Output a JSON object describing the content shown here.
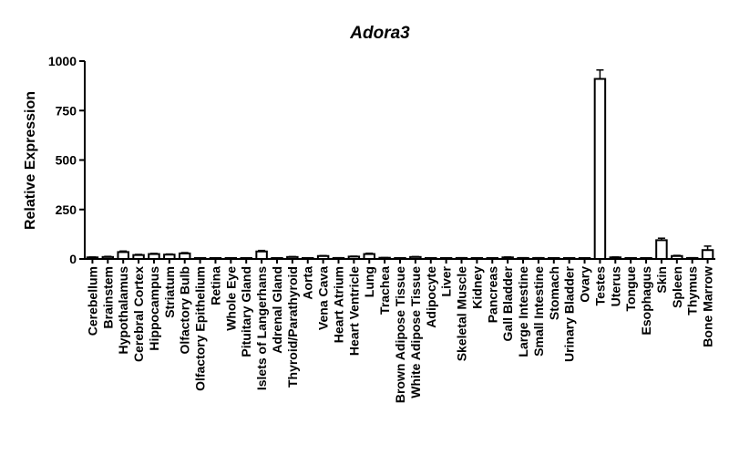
{
  "chart_data": {
    "type": "bar",
    "title": "Adora3",
    "xlabel": "",
    "ylabel": "Relative Expression",
    "ylim": [
      0,
      1000
    ],
    "yticks": [
      0,
      250,
      500,
      750,
      1000
    ],
    "grid": false,
    "legend": "none",
    "categories": [
      "Cerebellum",
      "Brainstem",
      "Hypothalamus",
      "Cerebral Cortex",
      "Hippocampus",
      "Striatum",
      "Olfactory Bulb",
      "Olfactory Epithelium",
      "Retina",
      "Whole Eye",
      "Pituitary Gland",
      "Islets of Langerhans",
      "Adrenal Gland",
      "Thyroid/Parathyroid",
      "Aorta",
      "Vena Cava",
      "Heart Atrium",
      "Heart Ventricle",
      "Lung",
      "Trachea",
      "Brown Adipose Tissue",
      "White Adipose Tissue",
      "Adipocyte",
      "Liver",
      "Skeletal Muscle",
      "Kidney",
      "Pancreas",
      "Gall Bladder",
      "Large Intestine",
      "Small Intestine",
      "Stomach",
      "Urinary Bladder",
      "Ovary",
      "Testes",
      "Uterus",
      "Tongue",
      "Esophagus",
      "Skin",
      "Spleen",
      "Thymus",
      "Bone Marrow"
    ],
    "values": [
      8,
      10,
      35,
      20,
      25,
      22,
      28,
      2,
      3,
      4,
      2,
      38,
      2,
      10,
      3,
      15,
      5,
      12,
      25,
      6,
      3,
      10,
      3,
      4,
      5,
      2,
      2,
      8,
      5,
      5,
      3,
      3,
      2,
      910,
      8,
      4,
      2,
      95,
      15,
      5,
      45
    ],
    "errors": [
      2,
      3,
      5,
      3,
      3,
      3,
      4,
      1,
      1,
      1,
      1,
      5,
      1,
      2,
      1,
      2,
      1,
      2,
      4,
      1,
      1,
      2,
      1,
      1,
      1,
      1,
      1,
      2,
      1,
      1,
      1,
      1,
      1,
      45,
      2,
      1,
      1,
      10,
      3,
      1,
      20
    ],
    "colors": {
      "bar_fill": "#ffffff",
      "bar_stroke": "#000000",
      "skin_hatch": "#000000"
    }
  }
}
